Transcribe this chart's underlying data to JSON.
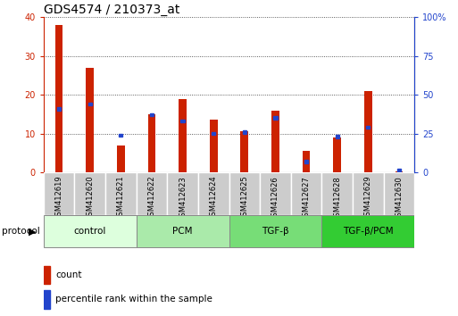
{
  "title": "GDS4574 / 210373_at",
  "categories": [
    "GSM412619",
    "GSM412620",
    "GSM412621",
    "GSM412622",
    "GSM412623",
    "GSM412624",
    "GSM412625",
    "GSM412626",
    "GSM412627",
    "GSM412628",
    "GSM412629",
    "GSM412630"
  ],
  "count_values": [
    38,
    27,
    7,
    15,
    19,
    13.5,
    10.5,
    16,
    5.5,
    9,
    21,
    0.3
  ],
  "percentile_values": [
    41,
    44,
    24,
    37,
    33,
    25,
    26,
    35,
    7,
    23,
    29,
    1
  ],
  "ylim_left": [
    0,
    40
  ],
  "ylim_right": [
    0,
    100
  ],
  "yticks_left": [
    0,
    10,
    20,
    30,
    40
  ],
  "yticks_right": [
    0,
    25,
    50,
    75,
    100
  ],
  "count_color": "#cc2200",
  "percentile_color": "#2244cc",
  "protocol_groups": [
    {
      "label": "control",
      "start": 0,
      "end": 2,
      "color": "#ddffdd"
    },
    {
      "label": "PCM",
      "start": 3,
      "end": 5,
      "color": "#aaeaaa"
    },
    {
      "label": "TGF-β",
      "start": 6,
      "end": 8,
      "color": "#77dd77"
    },
    {
      "label": "TGF-β/PCM",
      "start": 9,
      "end": 11,
      "color": "#33cc33"
    }
  ],
  "protocol_label": "protocol",
  "legend_count_label": "count",
  "legend_percentile_label": "percentile rank within the sample",
  "title_fontsize": 10,
  "tick_fontsize": 7,
  "ax_left_color": "#cc2200",
  "ax_right_color": "#2244cc",
  "cat_box_color": "#cccccc",
  "cat_box_edge": "#aaaaaa"
}
